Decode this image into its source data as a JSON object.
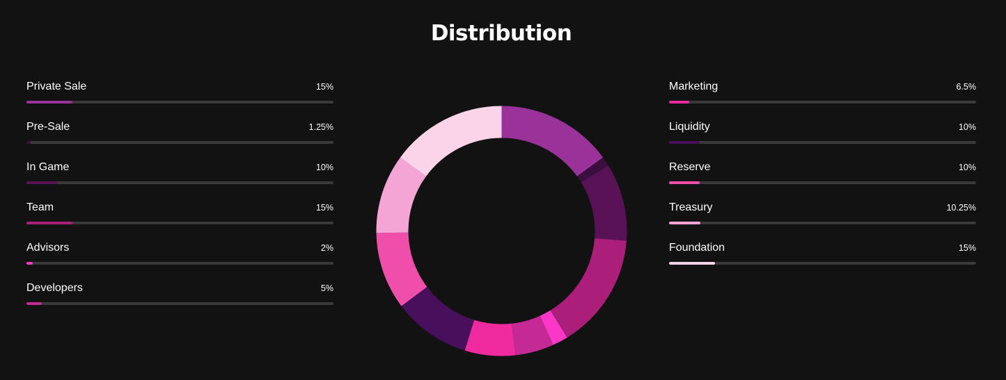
{
  "title": "Distribution",
  "chart_data": {
    "type": "pie",
    "title": "Distribution",
    "unit": "%",
    "slices": [
      {
        "label": "Private Sale",
        "value": 15,
        "display": "15%",
        "color": "#9a329a"
      },
      {
        "label": "Pre-Sale",
        "value": 1.25,
        "display": "1.25%",
        "color": "#3a0e3e"
      },
      {
        "label": "In Game",
        "value": 10,
        "display": "10%",
        "color": "#5a1256"
      },
      {
        "label": "Team",
        "value": 15,
        "display": "15%",
        "color": "#ab1f7a"
      },
      {
        "label": "Advisors",
        "value": 2,
        "display": "2%",
        "color": "#fb37c8"
      },
      {
        "label": "Developers",
        "value": 5,
        "display": "5%",
        "color": "#c42994"
      },
      {
        "label": "Marketing",
        "value": 6.5,
        "display": "6.5%",
        "color": "#ef2a9f"
      },
      {
        "label": "Liquidity",
        "value": 10,
        "display": "10%",
        "color": "#48105c"
      },
      {
        "label": "Reserve",
        "value": 10,
        "display": "10%",
        "color": "#ef4eab"
      },
      {
        "label": "Treasury",
        "value": 10.25,
        "display": "10.25%",
        "color": "#f4a5d6"
      },
      {
        "label": "Foundation",
        "value": 15,
        "display": "15%",
        "color": "#fcd4ea"
      }
    ],
    "legend": {
      "left": [
        "Private Sale",
        "Pre-Sale",
        "In Game",
        "Team",
        "Advisors",
        "Developers"
      ],
      "right": [
        "Marketing",
        "Liquidity",
        "Reserve",
        "Treasury",
        "Foundation"
      ]
    },
    "bar_track_color": "#3a3a3a"
  }
}
